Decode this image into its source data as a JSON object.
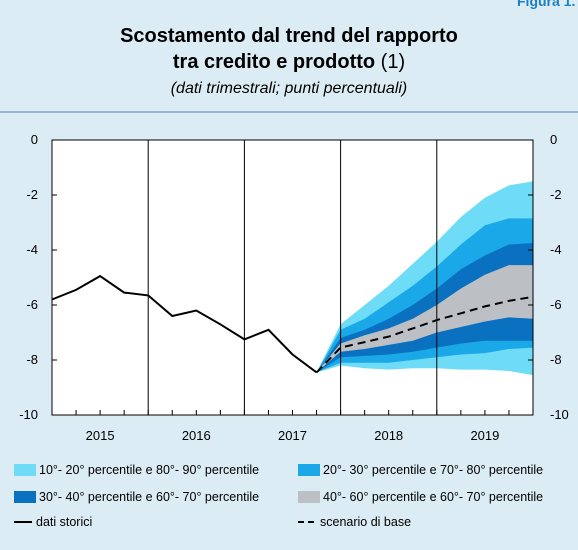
{
  "figure_label": "Figura 1.",
  "chart_data": {
    "type": "fan",
    "title": [
      "Scostamento dal trend del rapporto",
      "tra credito e prodotto"
    ],
    "title_note": "(1)",
    "subtitle": "(dati trimestrali; punti percentuali)",
    "categories": [
      "2015",
      "2016",
      "2017",
      "2018",
      "2019"
    ],
    "ylim": [
      -10,
      0
    ],
    "yticks": [
      0,
      -2,
      -4,
      -6,
      -8,
      -10
    ],
    "series": [
      {
        "name": "10°- 20° percentile e 80°- 90° percentile",
        "color": "#6fdcf7",
        "upper": [
          null,
          null,
          null,
          null,
          null,
          null,
          null,
          null,
          null,
          null,
          null,
          -8.45,
          -6.7,
          -6.0,
          -5.3,
          -4.5,
          -3.7,
          -2.8,
          -2.1,
          -1.65,
          -1.5
        ],
        "lower": [
          null,
          null,
          null,
          null,
          null,
          null,
          null,
          null,
          null,
          null,
          null,
          -8.45,
          -8.2,
          -8.3,
          -8.35,
          -8.3,
          -8.3,
          -8.35,
          -8.35,
          -8.4,
          -8.55
        ]
      },
      {
        "name": "20°- 30° percentile e 70°- 80° percentile",
        "color": "#1aa8e8",
        "upper": [
          null,
          null,
          null,
          null,
          null,
          null,
          null,
          null,
          null,
          null,
          null,
          -8.45,
          -6.9,
          -6.5,
          -5.9,
          -5.3,
          -4.6,
          -3.8,
          -3.1,
          -2.85,
          -2.85
        ],
        "lower": [
          null,
          null,
          null,
          null,
          null,
          null,
          null,
          null,
          null,
          null,
          null,
          -8.45,
          -8.1,
          -8.1,
          -8.1,
          -8.0,
          -7.9,
          -7.8,
          -7.75,
          -7.6,
          -7.55
        ]
      },
      {
        "name": "30°- 40° percentile e 60°- 70° percentile",
        "color": "#0a70c0",
        "upper": [
          null,
          null,
          null,
          null,
          null,
          null,
          null,
          null,
          null,
          null,
          null,
          -8.45,
          -7.2,
          -6.9,
          -6.5,
          -6.0,
          -5.4,
          -4.7,
          -4.2,
          -3.8,
          -3.75
        ],
        "lower": [
          null,
          null,
          null,
          null,
          null,
          null,
          null,
          null,
          null,
          null,
          null,
          -8.45,
          -7.9,
          -7.85,
          -7.8,
          -7.7,
          -7.55,
          -7.4,
          -7.3,
          -7.3,
          -7.3
        ]
      },
      {
        "name": "40°- 60° percentile e 60°- 70° percentile",
        "color": "#bcbfc3",
        "upper": [
          null,
          null,
          null,
          null,
          null,
          null,
          null,
          null,
          null,
          null,
          null,
          -8.45,
          -7.4,
          -7.1,
          -6.85,
          -6.5,
          -6.0,
          -5.4,
          -4.9,
          -4.55,
          -4.55
        ],
        "lower": [
          null,
          null,
          null,
          null,
          null,
          null,
          null,
          null,
          null,
          null,
          null,
          -8.45,
          -7.7,
          -7.6,
          -7.45,
          -7.3,
          -7.0,
          -6.8,
          -6.6,
          -6.45,
          -6.5
        ]
      }
    ],
    "lines": [
      {
        "name": "dati storici",
        "color": "#000000",
        "dash": false,
        "values": [
          -5.8,
          -5.45,
          -4.95,
          -5.55,
          -5.65,
          -6.4,
          -6.2,
          -6.7,
          -7.25,
          -6.9,
          -7.8,
          -8.45,
          null,
          null,
          null,
          null,
          null,
          null,
          null,
          null,
          null
        ]
      },
      {
        "name": "scenario di base",
        "color": "#000000",
        "dash": true,
        "values": [
          null,
          null,
          null,
          null,
          null,
          null,
          null,
          null,
          null,
          null,
          null,
          -8.45,
          -7.55,
          -7.35,
          -7.15,
          -6.85,
          -6.55,
          -6.3,
          -6.05,
          -5.85,
          -5.7
        ]
      }
    ]
  }
}
